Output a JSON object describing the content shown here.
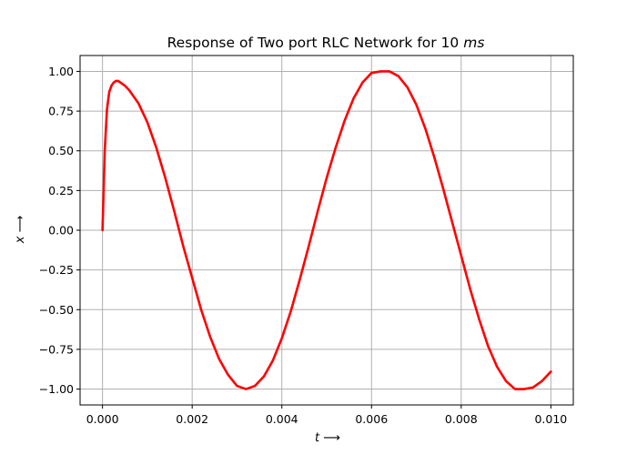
{
  "chart_data": {
    "type": "line",
    "title_main": "Response of Two port RLC Network for 10 ",
    "title_italic": "ms",
    "xlabel_var": "t",
    "xlabel_arrow": "⟶",
    "ylabel_var": "x",
    "ylabel_arrow": "⟶",
    "xlim": [
      -0.0005,
      0.0105
    ],
    "ylim": [
      -1.1,
      1.1
    ],
    "xticks": [
      0.0,
      0.002,
      0.004,
      0.006,
      0.008,
      0.01
    ],
    "xtick_labels": [
      "0.000",
      "0.002",
      "0.004",
      "0.006",
      "0.008",
      "0.010"
    ],
    "yticks": [
      -1.0,
      -0.75,
      -0.5,
      -0.25,
      0.0,
      0.25,
      0.5,
      0.75,
      1.0
    ],
    "ytick_labels": [
      "−1.00",
      "−0.75",
      "−0.50",
      "−0.25",
      "0.00",
      "0.25",
      "0.50",
      "0.75",
      "1.00"
    ],
    "grid": true,
    "series": [
      {
        "color": "#ff0000",
        "x": [
          0.0,
          5e-05,
          0.0001,
          0.00015,
          0.0002,
          0.00025,
          0.0003,
          0.00035,
          0.0004,
          0.0005,
          0.0006,
          0.0008,
          0.001,
          0.0012,
          0.0014,
          0.0016,
          0.0018,
          0.002,
          0.0022,
          0.0024,
          0.0026,
          0.0028,
          0.003,
          0.0032,
          0.0034,
          0.0036,
          0.0038,
          0.004,
          0.0042,
          0.0044,
          0.0046,
          0.0048,
          0.005,
          0.0052,
          0.0054,
          0.0056,
          0.0058,
          0.006,
          0.0062,
          0.0064,
          0.0066,
          0.0068,
          0.007,
          0.0072,
          0.0074,
          0.0076,
          0.0078,
          0.008,
          0.0082,
          0.0084,
          0.0086,
          0.0088,
          0.009,
          0.0092,
          0.0094,
          0.0096,
          0.0098,
          0.01
        ],
        "y": [
          0.0,
          0.5,
          0.76,
          0.87,
          0.91,
          0.93,
          0.94,
          0.94,
          0.93,
          0.91,
          0.88,
          0.8,
          0.68,
          0.52,
          0.33,
          0.12,
          -0.1,
          -0.3,
          -0.5,
          -0.67,
          -0.81,
          -0.91,
          -0.98,
          -1.0,
          -0.98,
          -0.92,
          -0.82,
          -0.68,
          -0.51,
          -0.31,
          -0.1,
          0.12,
          0.33,
          0.52,
          0.69,
          0.83,
          0.93,
          0.99,
          1.0,
          1.0,
          0.97,
          0.9,
          0.79,
          0.64,
          0.46,
          0.26,
          0.05,
          -0.16,
          -0.37,
          -0.56,
          -0.73,
          -0.86,
          -0.95,
          -1.0,
          -1.0,
          -0.99,
          -0.95,
          -0.89
        ]
      }
    ]
  }
}
